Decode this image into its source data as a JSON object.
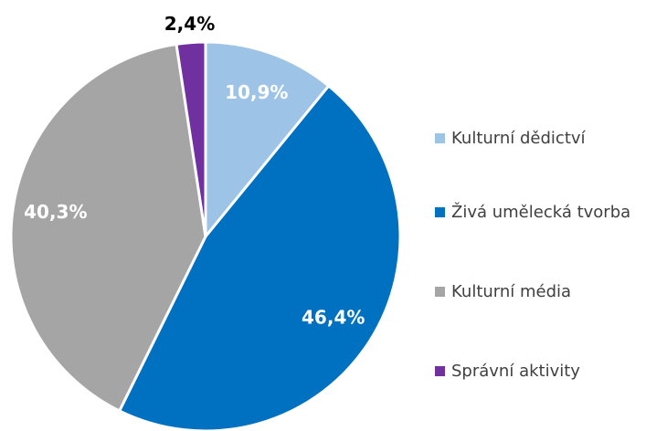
{
  "chart_data": {
    "type": "pie",
    "categories": [
      "Kulturní dědictví",
      "Živá umělecká tvorba",
      "Kulturní média",
      "Správní aktivity"
    ],
    "values": [
      10.9,
      46.4,
      40.3,
      2.4
    ],
    "value_labels": [
      "10,9%",
      "46,4%",
      "40,3%",
      "2,4%"
    ],
    "colors": [
      "#9dc3e6",
      "#0070c0",
      "#a5a5a5",
      "#7030a0"
    ],
    "legend": "right"
  }
}
